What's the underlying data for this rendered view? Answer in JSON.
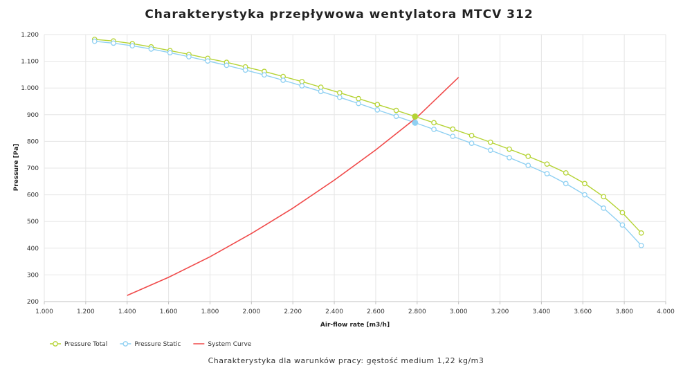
{
  "chart_data": {
    "type": "line",
    "title": "Charakterystyka przepływowa wentylatora MTCV 312",
    "subtitle": "Charakterystyka dla warunków pracy: gęstość medium 1,22 kg/m3",
    "xlabel": "Air-flow rate [m3/h]",
    "ylabel": "Pressure [Pa]",
    "xlim": [
      1000,
      4000
    ],
    "ylim": [
      200,
      1200
    ],
    "x_ticks": [
      "1.000",
      "1.200",
      "1.400",
      "1.600",
      "1.800",
      "2.000",
      "2.200",
      "2.400",
      "2.600",
      "2.800",
      "3.000",
      "3.200",
      "3.400",
      "3.600",
      "3.800",
      "4.000"
    ],
    "y_ticks": [
      "200",
      "300",
      "400",
      "500",
      "600",
      "700",
      "800",
      "900",
      "1.000",
      "1.100",
      "1.200"
    ],
    "grid": true,
    "legend_position": "bottom-left",
    "series": [
      {
        "name": "Pressure Total",
        "color": "#b5d334",
        "marker": "circle",
        "x": [
          1243,
          1334,
          1425,
          1516,
          1607,
          1698,
          1789,
          1880,
          1971,
          2062,
          2153,
          2244,
          2335,
          2426,
          2517,
          2608,
          2699,
          2790,
          2881,
          2972,
          3063,
          3154,
          3245,
          3336,
          3427,
          3518,
          3609,
          3700,
          3791,
          3882
        ],
        "y": [
          1182,
          1176,
          1166,
          1154,
          1140,
          1126,
          1111,
          1096,
          1079,
          1062,
          1043,
          1024,
          1003,
          982,
          960,
          938,
          916,
          893,
          870,
          846,
          822,
          797,
          771,
          744,
          715,
          682,
          642,
          593,
          533,
          457
        ]
      },
      {
        "name": "Pressure Static",
        "color": "#8fd0f2",
        "marker": "circle",
        "x": [
          1243,
          1334,
          1425,
          1516,
          1607,
          1698,
          1789,
          1880,
          1971,
          2062,
          2153,
          2244,
          2335,
          2426,
          2517,
          2608,
          2699,
          2790,
          2881,
          2972,
          3063,
          3154,
          3245,
          3336,
          3427,
          3518,
          3609,
          3700,
          3791,
          3882
        ],
        "y": [
          1175,
          1168,
          1158,
          1146,
          1132,
          1117,
          1101,
          1085,
          1067,
          1049,
          1029,
          1008,
          987,
          965,
          942,
          918,
          894,
          870,
          845,
          819,
          793,
          767,
          739,
          710,
          679,
          642,
          600,
          550,
          487,
          410
        ]
      },
      {
        "name": "System Curve",
        "color": "#f04a4a",
        "marker": "none",
        "x": [
          1400,
          1600,
          1800,
          2000,
          2200,
          2400,
          2600,
          2800,
          3000
        ],
        "y": [
          223,
          291,
          368,
          455,
          550,
          655,
          768,
          891,
          1040
        ]
      }
    ],
    "operating_points": [
      {
        "series": "Pressure Total",
        "x": 2790,
        "y": 893
      },
      {
        "series": "Pressure Static",
        "x": 2790,
        "y": 870
      }
    ]
  }
}
